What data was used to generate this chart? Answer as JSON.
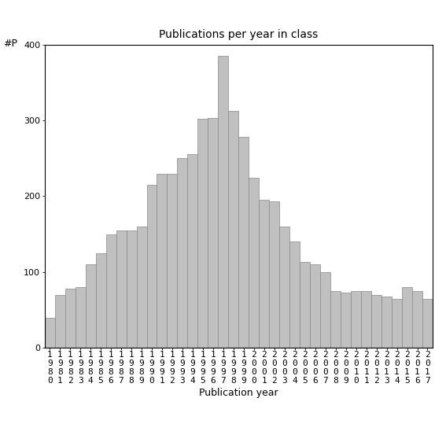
{
  "title": "Publications per year in class",
  "xlabel": "Publication year",
  "ylabel": "#P",
  "years": [
    "1980",
    "1981",
    "1982",
    "1983",
    "1984",
    "1985",
    "1986",
    "1987",
    "1988",
    "1989",
    "1990",
    "1991",
    "1992",
    "1993",
    "1994",
    "1995",
    "1996",
    "1997",
    "1998",
    "1999",
    "2000",
    "2001",
    "2002",
    "2003",
    "2004",
    "2005",
    "2006",
    "2007",
    "2008",
    "2009",
    "2010",
    "2011",
    "2012",
    "2013",
    "2014",
    "2015",
    "2016",
    "2017"
  ],
  "values": [
    40,
    70,
    78,
    80,
    110,
    125,
    150,
    155,
    155,
    160,
    215,
    230,
    230,
    250,
    255,
    302,
    303,
    385,
    313,
    278,
    224,
    195,
    193,
    160,
    140,
    113,
    110,
    100,
    75,
    73,
    75,
    75,
    70,
    68,
    65,
    80,
    75,
    65
  ],
  "bar_color": "#c0c0c0",
  "bar_edgecolor": "#888888",
  "ylim": [
    0,
    400
  ],
  "yticks": [
    0,
    100,
    200,
    300,
    400
  ],
  "bg_color": "#ffffff",
  "fig_color": "#ffffff",
  "title_fontsize": 10,
  "axis_fontsize": 9,
  "tick_fontsize": 8
}
